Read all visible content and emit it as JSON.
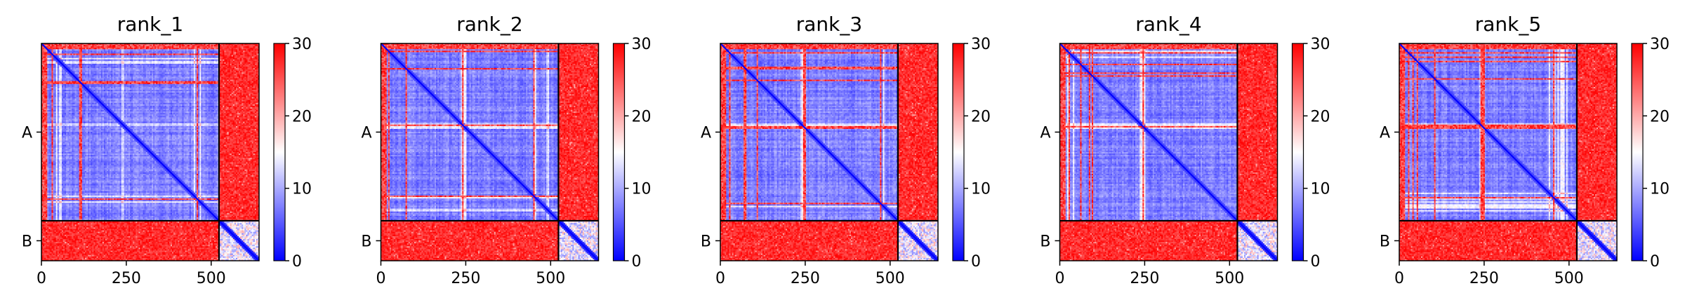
{
  "chart_data": {
    "type": "heatmap",
    "colormap": {
      "name": "bwr",
      "low_color": "#0000ff",
      "mid_color": "#ffffff",
      "high_color": "#ff0000",
      "vmin": 0,
      "vmax": 30,
      "ticks": [
        0,
        10,
        20,
        30
      ],
      "tick_labels": [
        "0",
        "10",
        "20",
        "30"
      ]
    },
    "matrix_size": 641,
    "chain_boundary": 523,
    "xlim": [
      0,
      641
    ],
    "x_ticks": [
      0,
      250,
      500
    ],
    "x_tick_labels": [
      "0",
      "250",
      "500"
    ],
    "chains": [
      {
        "label": "A",
        "start": 0,
        "end": 523
      },
      {
        "label": "B",
        "start": 523,
        "end": 641
      }
    ],
    "panels": [
      {
        "title": "rank_1"
      },
      {
        "title": "rank_2"
      },
      {
        "title": "rank_3"
      },
      {
        "title": "rank_4"
      },
      {
        "title": "rank_5"
      }
    ]
  }
}
